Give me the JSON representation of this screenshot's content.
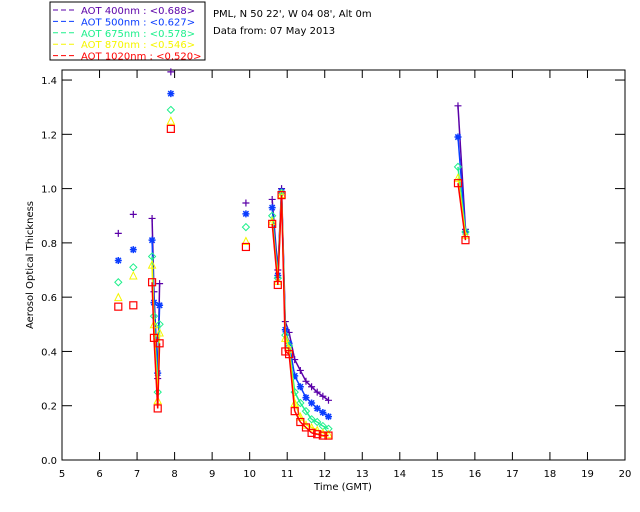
{
  "chart_data": {
    "type": "scatter",
    "title_lines": [
      "PML, N 50 22', W 04 08', Alt 0m",
      "Data from: 07 May 2013"
    ],
    "xlabel": "Time (GMT)",
    "ylabel": "Aerosol Optical Thickness",
    "xlim": [
      5,
      20
    ],
    "ylim": [
      0,
      1.437
    ],
    "xticks": [
      "5",
      "6",
      "7",
      "8",
      "9",
      "10",
      "11",
      "12",
      "13",
      "14",
      "15",
      "16",
      "17",
      "18",
      "19",
      "20"
    ],
    "yticks": [
      "0.0",
      "0.2",
      "0.4",
      "0.6",
      "0.8",
      "1.0",
      "1.2",
      "1.4"
    ],
    "legend_position": "top-left",
    "x": [
      6.5,
      6.9,
      7.4,
      7.45,
      7.55,
      7.6,
      7.9,
      9.9,
      10.6,
      10.75,
      10.85,
      10.95,
      11.05,
      11.2,
      11.35,
      11.5,
      11.65,
      11.8,
      11.95,
      12.1,
      15.55,
      15.75
    ],
    "series": [
      {
        "name": "AOT  400nm : <0.688>",
        "color": "#5a00a8",
        "marker": "plus",
        "values": [
          0.835,
          0.905,
          0.89,
          0.62,
          0.3,
          0.65,
          1.43,
          0.947,
          0.96,
          0.7,
          1.0,
          0.51,
          0.47,
          0.37,
          0.33,
          0.29,
          0.27,
          0.25,
          0.235,
          0.22,
          1.305,
          0.85
        ]
      },
      {
        "name": "AOT  500nm : <0.627>",
        "color": "#0a3cff",
        "marker": "asterisk",
        "values": [
          0.735,
          0.775,
          0.81,
          0.58,
          0.32,
          0.57,
          1.35,
          0.907,
          0.93,
          0.68,
          0.99,
          0.48,
          0.43,
          0.31,
          0.27,
          0.23,
          0.21,
          0.19,
          0.175,
          0.16,
          1.19,
          0.84
        ]
      },
      {
        "name": "AOT  675nm : <0.578>",
        "color": "#1ef08c",
        "marker": "diamond",
        "values": [
          0.655,
          0.71,
          0.75,
          0.53,
          0.25,
          0.5,
          1.29,
          0.858,
          0.9,
          0.67,
          0.985,
          0.46,
          0.42,
          0.25,
          0.21,
          0.18,
          0.15,
          0.14,
          0.125,
          0.115,
          1.08,
          0.84
        ]
      },
      {
        "name": "AOT  870nm : <0.546>",
        "color": "#f5f500",
        "marker": "triangle",
        "values": [
          0.6,
          0.68,
          0.72,
          0.5,
          0.22,
          0.47,
          1.25,
          0.807,
          0.88,
          0.66,
          0.98,
          0.45,
          0.41,
          0.21,
          0.16,
          0.13,
          0.12,
          0.11,
          0.1,
          0.095,
          1.04,
          0.83
        ]
      },
      {
        "name": "AOT 1020nm : <0.520>",
        "color": "#ff0000",
        "marker": "square",
        "values": [
          0.565,
          0.57,
          0.655,
          0.45,
          0.19,
          0.43,
          1.22,
          0.785,
          0.87,
          0.645,
          0.976,
          0.4,
          0.39,
          0.18,
          0.14,
          0.12,
          0.1,
          0.095,
          0.09,
          0.09,
          1.02,
          0.81
        ]
      }
    ]
  }
}
